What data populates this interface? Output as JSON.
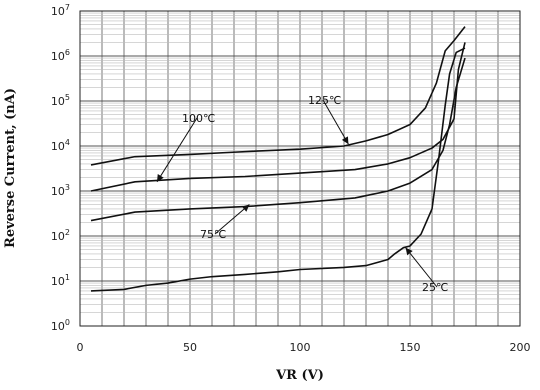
{
  "chart_data": {
    "type": "line",
    "title": "",
    "xlabel": "VR (V)",
    "ylabel": "Reverse Current, (nA)",
    "xlim": [
      0,
      200
    ],
    "ylim": [
      1,
      10000000
    ],
    "yscale": "log",
    "x_ticks": [
      "0",
      "50",
      "100",
      "150",
      "200"
    ],
    "y_ticks": [
      {
        "base": "10",
        "exp": "0"
      },
      {
        "base": "10",
        "exp": "1"
      },
      {
        "base": "10",
        "exp": "2"
      },
      {
        "base": "10",
        "exp": "3"
      },
      {
        "base": "10",
        "exp": "4"
      },
      {
        "base": "10",
        "exp": "5"
      },
      {
        "base": "10",
        "exp": "6"
      },
      {
        "base": "10",
        "exp": "7"
      }
    ],
    "grid": true,
    "series": [
      {
        "name": "125℃",
        "x": [
          5,
          25,
          50,
          75,
          100,
          120,
          130,
          140,
          150,
          157,
          162,
          166,
          170,
          175
        ],
        "y": [
          3800,
          5800,
          6500,
          7500,
          8500,
          10000,
          13000,
          18000,
          30000,
          70000,
          250000,
          1300000,
          2200000,
          4500000
        ]
      },
      {
        "name": "100℃",
        "x": [
          5,
          25,
          50,
          75,
          100,
          125,
          140,
          150,
          160,
          165,
          170,
          172,
          175
        ],
        "y": [
          1000,
          1600,
          1900,
          2100,
          2500,
          3000,
          4000,
          5500,
          9000,
          14000,
          40000,
          500000,
          2000000
        ]
      },
      {
        "name": "75℃",
        "x": [
          5,
          25,
          50,
          75,
          100,
          125,
          140,
          150,
          160,
          165,
          168,
          171,
          175
        ],
        "y": [
          220,
          340,
          400,
          450,
          550,
          700,
          1000,
          1500,
          3000,
          8000,
          30000,
          200000,
          900000
        ]
      },
      {
        "name": "25℃",
        "x": [
          5,
          20,
          30,
          40,
          50,
          60,
          75,
          90,
          100,
          120,
          130,
          140,
          143,
          147,
          150,
          155,
          160,
          163,
          166,
          168,
          171,
          175
        ],
        "y": [
          6,
          6.5,
          8,
          9,
          11,
          12.5,
          14,
          16,
          18,
          20,
          22,
          30,
          40,
          55,
          60,
          110,
          400,
          5000,
          80000,
          400000,
          1200000,
          1500000
        ]
      }
    ],
    "annotations": [
      {
        "text": "125℃",
        "series": "125℃",
        "point": [
          122,
          11000
        ]
      },
      {
        "text": "100℃",
        "series": "100℃",
        "point": [
          35,
          1600
        ]
      },
      {
        "text": "75℃",
        "series": "75℃",
        "point": [
          77,
          500
        ]
      },
      {
        "text": "25℃",
        "series": "25℃",
        "point": [
          148,
          55
        ]
      }
    ]
  }
}
